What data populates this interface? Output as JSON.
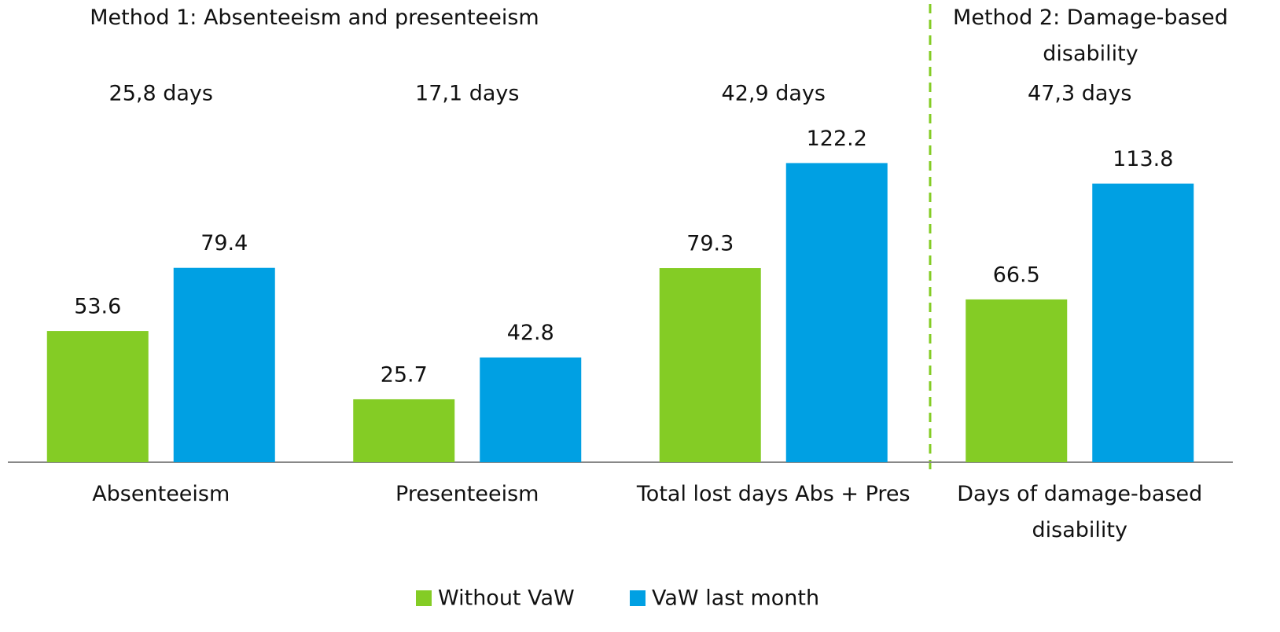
{
  "chart_data": {
    "type": "bar",
    "methods": [
      "Method 1: Absenteeism and presenteeism",
      "Method 2: Damage-based disability"
    ],
    "group_totals": [
      "25,8 days",
      "17,1 days",
      "42,9 days",
      "47,3 days"
    ],
    "categories": [
      "Absenteeism",
      "Presenteeism",
      "Total lost days Abs + Pres",
      "Days of damage-based disability"
    ],
    "series": [
      {
        "name": "Without VaW",
        "color": "#84cc25",
        "values": [
          53.6,
          25.7,
          79.3,
          66.5
        ]
      },
      {
        "name": "VaW last month",
        "color": "#00a0e3",
        "values": [
          79.4,
          42.8,
          122.2,
          113.8
        ]
      }
    ],
    "ylim": [
      0,
      140
    ],
    "legend": "bottom"
  }
}
